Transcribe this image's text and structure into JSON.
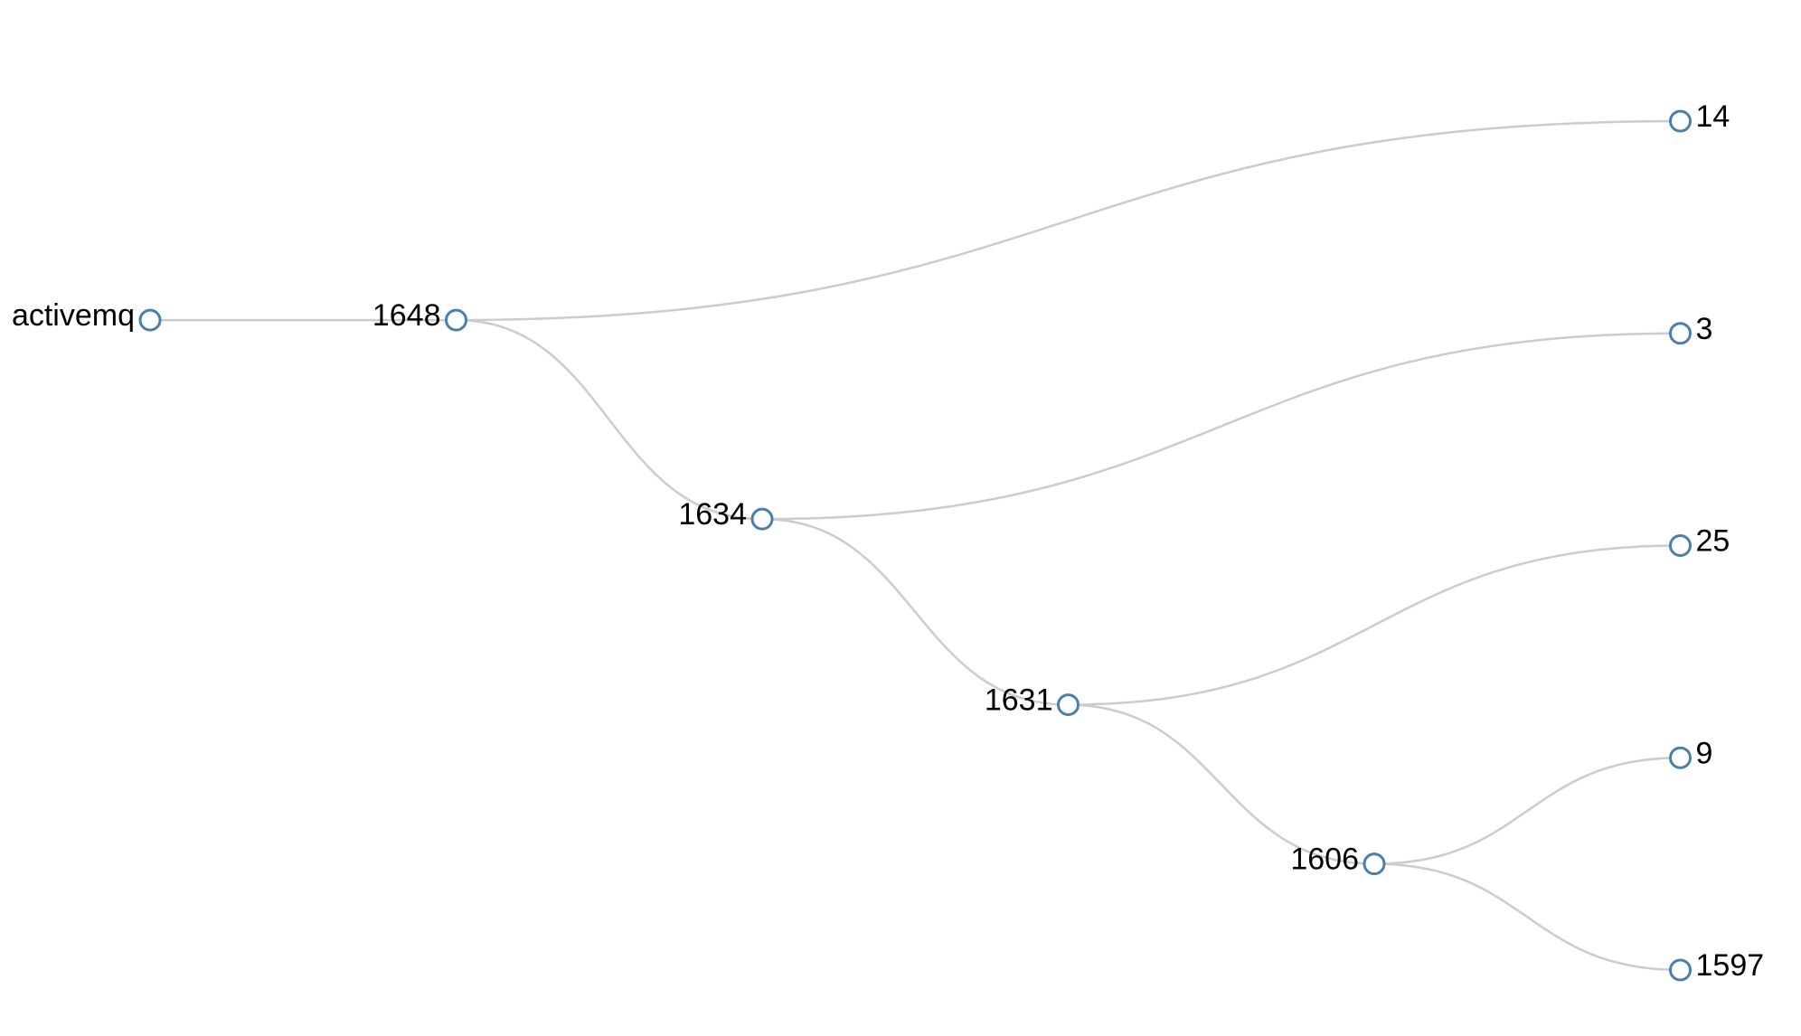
{
  "tree": {
    "root": {
      "label": "activemq",
      "children": [
        {
          "label": "1648",
          "children": [
            {
              "label": "14",
              "children": []
            },
            {
              "label": "1634",
              "children": [
                {
                  "label": "3",
                  "children": []
                },
                {
                  "label": "1631",
                  "children": [
                    {
                      "label": "25",
                      "children": []
                    },
                    {
                      "label": "1606",
                      "children": [
                        {
                          "label": "9",
                          "children": []
                        },
                        {
                          "label": "1597",
                          "children": []
                        }
                      ]
                    }
                  ]
                }
              ]
            }
          ]
        }
      ]
    },
    "colors": {
      "link": "#cccccc",
      "node_stroke": "#4a7fad",
      "node_fill": "#ffffff",
      "label": "#000000"
    }
  }
}
